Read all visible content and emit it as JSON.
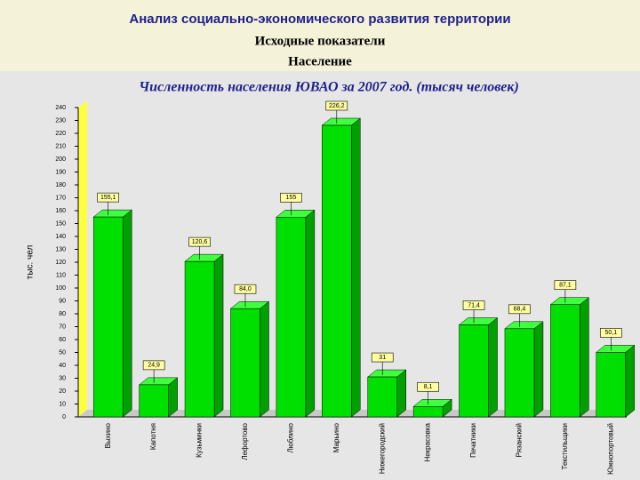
{
  "header": {
    "title": "Анализ социально-экономического развития территории",
    "subtitle": "Исходные показатели",
    "section": "Население"
  },
  "chart_data": {
    "type": "bar",
    "title": "Численность населения ЮВАО за 2007 год. (тысяч человек)",
    "y_label": "тыс. чел",
    "categories": [
      "Выхино",
      "Капотня",
      "Кузьминки",
      "Лефортово",
      "Люблино",
      "Марьино",
      "Нижегородский",
      "Некрасовка",
      "Печатники",
      "Рязанский",
      "Текстильщики",
      "Южнопортовый"
    ],
    "values": [
      155.1,
      24.9,
      120.6,
      84.0,
      155,
      226.2,
      31,
      8.1,
      71.4,
      68.4,
      87.1,
      50.1
    ],
    "value_labels": [
      "155,1",
      "24,9",
      "120,6",
      "84,0",
      "155",
      "226,2",
      "31",
      "8,1",
      "71,4",
      "68,4",
      "87,1",
      "50,1"
    ],
    "color": "#00e000",
    "ylim": [
      0,
      240
    ],
    "yticks": [
      0,
      10,
      20,
      30,
      40,
      50,
      60,
      70,
      80,
      90,
      100,
      110,
      120,
      130,
      140,
      150,
      160,
      170,
      180,
      190,
      200,
      210,
      220,
      230,
      240
    ],
    "grid": false
  }
}
